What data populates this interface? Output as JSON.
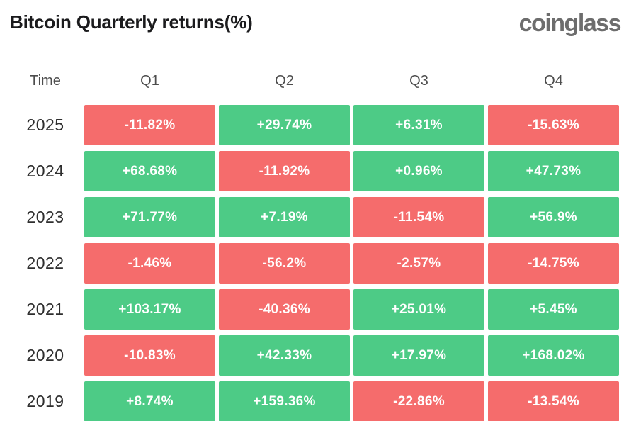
{
  "page": {
    "title": "Bitcoin Quarterly returns(%)",
    "logo": "coinglass"
  },
  "colors": {
    "positive": "#4DCB86",
    "negative": "#F56C6C",
    "title_text": "#1B1B1D",
    "header_text": "#4D4D4D",
    "year_text": "#2E2E2E",
    "cell_text": "#FFFFFF",
    "logo_text": "#6D6D6D",
    "background": "#FFFFFF"
  },
  "table": {
    "time_header": "Time",
    "quarter_headers": [
      "Q1",
      "Q2",
      "Q3",
      "Q4"
    ],
    "rows": [
      {
        "year": "2025",
        "cells": [
          {
            "value": "-11.82%",
            "sign": "neg"
          },
          {
            "value": "+29.74%",
            "sign": "pos"
          },
          {
            "value": "+6.31%",
            "sign": "pos"
          },
          {
            "value": "-15.63%",
            "sign": "neg"
          }
        ]
      },
      {
        "year": "2024",
        "cells": [
          {
            "value": "+68.68%",
            "sign": "pos"
          },
          {
            "value": "-11.92%",
            "sign": "neg"
          },
          {
            "value": "+0.96%",
            "sign": "pos"
          },
          {
            "value": "+47.73%",
            "sign": "pos"
          }
        ]
      },
      {
        "year": "2023",
        "cells": [
          {
            "value": "+71.77%",
            "sign": "pos"
          },
          {
            "value": "+7.19%",
            "sign": "pos"
          },
          {
            "value": "-11.54%",
            "sign": "neg"
          },
          {
            "value": "+56.9%",
            "sign": "pos"
          }
        ]
      },
      {
        "year": "2022",
        "cells": [
          {
            "value": "-1.46%",
            "sign": "neg"
          },
          {
            "value": "-56.2%",
            "sign": "neg"
          },
          {
            "value": "-2.57%",
            "sign": "neg"
          },
          {
            "value": "-14.75%",
            "sign": "neg"
          }
        ]
      },
      {
        "year": "2021",
        "cells": [
          {
            "value": "+103.17%",
            "sign": "pos"
          },
          {
            "value": "-40.36%",
            "sign": "neg"
          },
          {
            "value": "+25.01%",
            "sign": "pos"
          },
          {
            "value": "+5.45%",
            "sign": "pos"
          }
        ]
      },
      {
        "year": "2020",
        "cells": [
          {
            "value": "-10.83%",
            "sign": "neg"
          },
          {
            "value": "+42.33%",
            "sign": "pos"
          },
          {
            "value": "+17.97%",
            "sign": "pos"
          },
          {
            "value": "+168.02%",
            "sign": "pos"
          }
        ]
      },
      {
        "year": "2019",
        "cells": [
          {
            "value": "+8.74%",
            "sign": "pos"
          },
          {
            "value": "+159.36%",
            "sign": "pos"
          },
          {
            "value": "-22.86%",
            "sign": "neg"
          },
          {
            "value": "-13.54%",
            "sign": "neg"
          }
        ]
      }
    ]
  },
  "chart_data": {
    "type": "heatmap",
    "title": "Bitcoin Quarterly returns(%)",
    "columns": [
      "Q1",
      "Q2",
      "Q3",
      "Q4"
    ],
    "rows": [
      "2025",
      "2024",
      "2023",
      "2022",
      "2021",
      "2020",
      "2019"
    ],
    "values": [
      [
        -11.82,
        29.74,
        6.31,
        -15.63
      ],
      [
        68.68,
        -11.92,
        0.96,
        47.73
      ],
      [
        71.77,
        7.19,
        -11.54,
        56.9
      ],
      [
        -1.46,
        -56.2,
        -2.57,
        -14.75
      ],
      [
        103.17,
        -40.36,
        25.01,
        5.45
      ],
      [
        -10.83,
        42.33,
        17.97,
        168.02
      ],
      [
        8.74,
        159.36,
        -22.86,
        -13.54
      ]
    ],
    "unit": "%",
    "positive_color": "#4DCB86",
    "negative_color": "#F56C6C",
    "legend": "none",
    "grid": false
  }
}
